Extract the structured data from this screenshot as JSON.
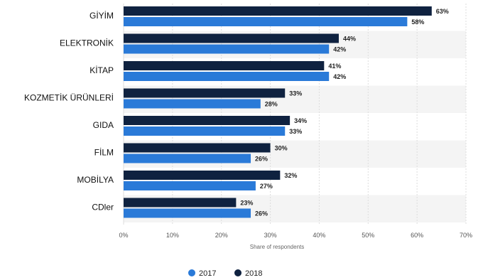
{
  "chart_data": {
    "type": "bar",
    "orientation": "horizontal",
    "categories": [
      "GİYİM",
      "ELEKTRONİK",
      "KİTAP",
      "KOZMETİK ÜRÜNLERİ",
      "GIDA",
      "FİLM",
      "MOBİLYA",
      "CDler"
    ],
    "series": [
      {
        "name": "2018",
        "color": "#0f2240",
        "values": [
          63,
          44,
          41,
          33,
          34,
          30,
          32,
          23
        ],
        "labels": [
          "63%",
          "44%",
          "41%",
          "33%",
          "34%",
          "30%",
          "32%",
          "23%"
        ]
      },
      {
        "name": "2017",
        "color": "#2a7ad8",
        "values": [
          58,
          42,
          42,
          28,
          33,
          26,
          27,
          26
        ],
        "labels": [
          "58%",
          "42%",
          "42%",
          "28%",
          "33%",
          "26%",
          "27%",
          "26%"
        ]
      }
    ],
    "xlim": [
      0,
      70
    ],
    "xticks": [
      "0%",
      "10%",
      "20%",
      "30%",
      "40%",
      "50%",
      "60%",
      "70%"
    ],
    "xlabel": "Share of respondents",
    "grid": true,
    "legend": {
      "position": "bottom-left",
      "entries": [
        "2017",
        "2018"
      ]
    }
  }
}
